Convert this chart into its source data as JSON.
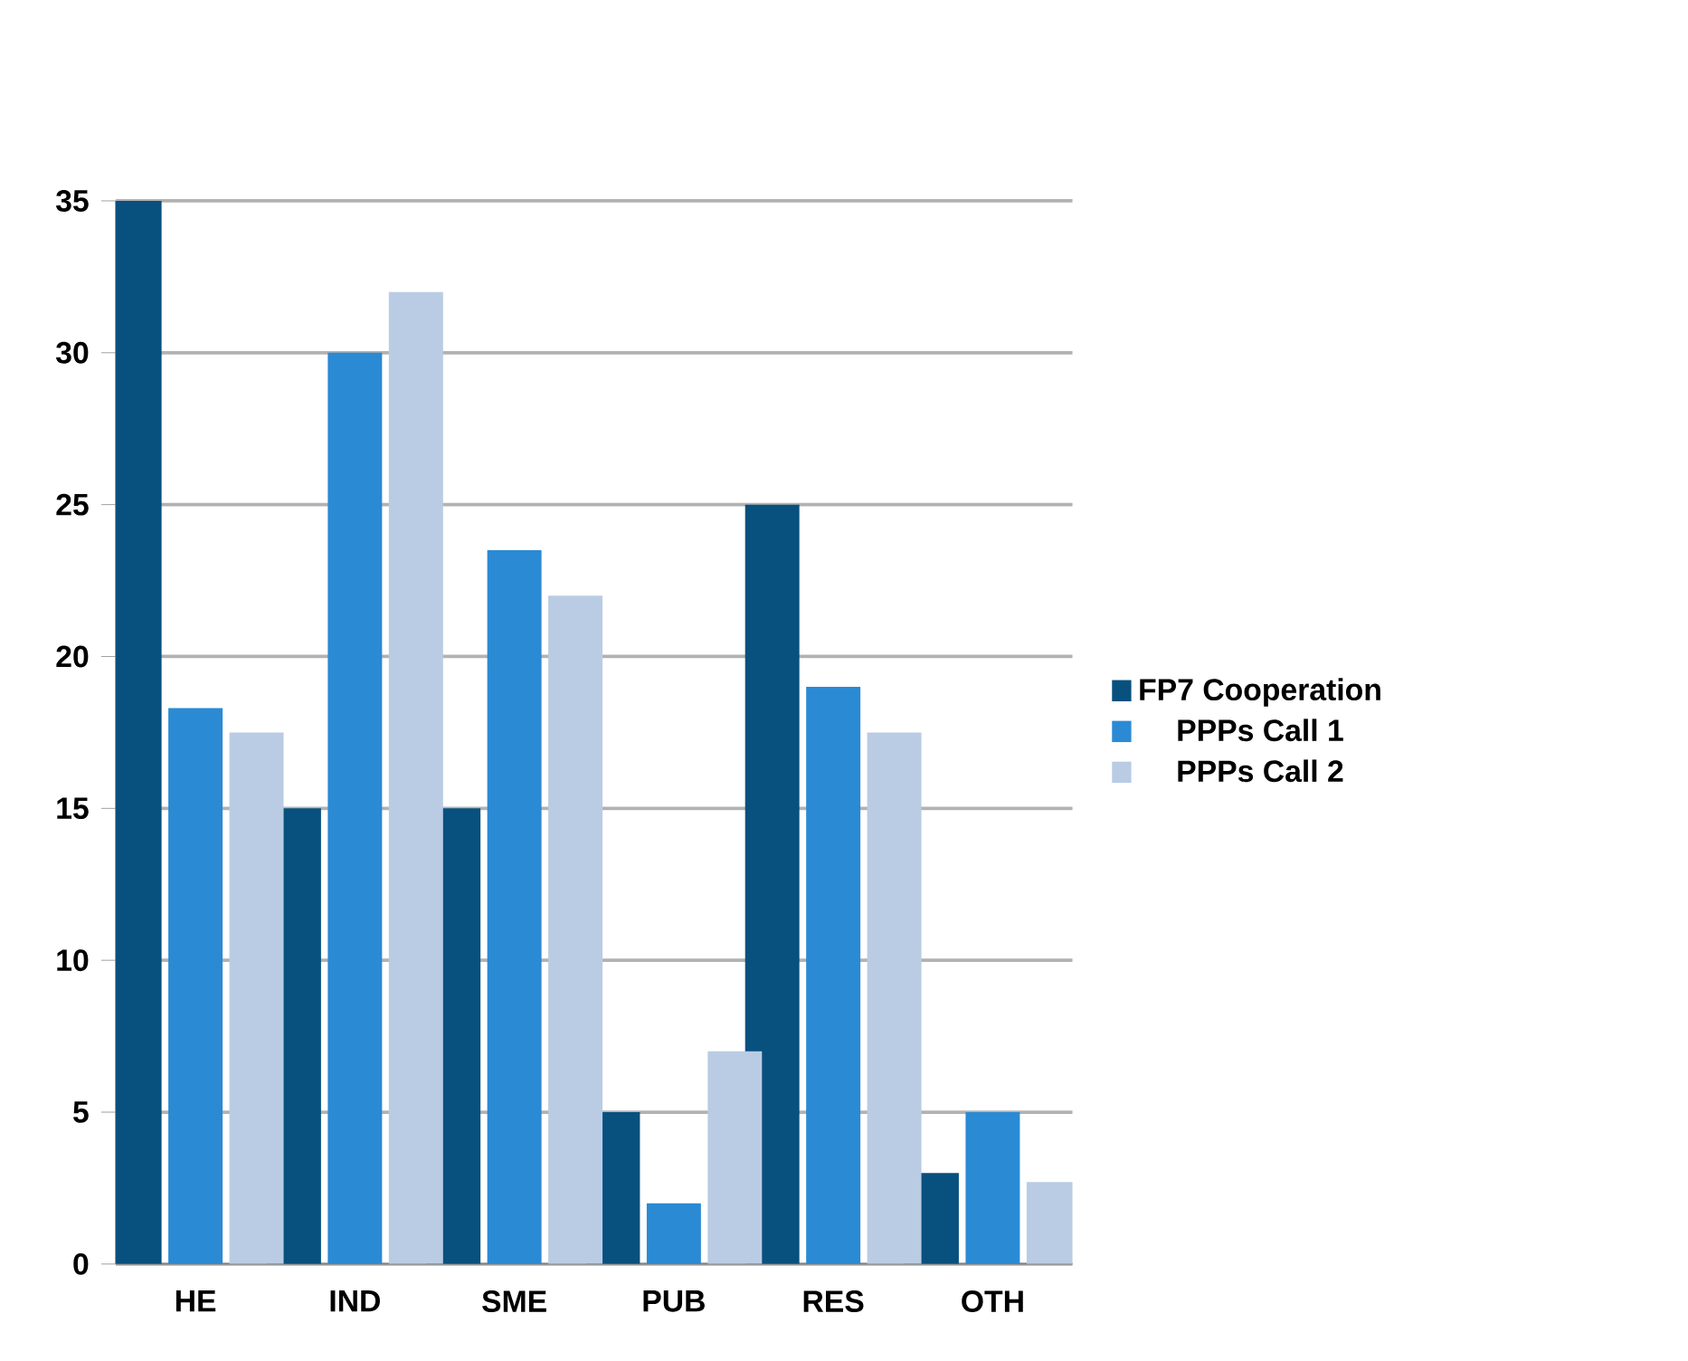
{
  "chart_data": {
    "type": "bar",
    "categories": [
      "HE",
      "IND",
      "SME",
      "PUB",
      "RES",
      "OTH"
    ],
    "series": [
      {
        "name": "FP7 Cooperation",
        "color": "#08507e",
        "values": [
          35,
          15,
          15,
          5,
          25,
          3
        ]
      },
      {
        "name": "PPPs Call 1",
        "color": "#2a8ad4",
        "values": [
          18.3,
          30,
          23.5,
          2,
          19,
          5
        ]
      },
      {
        "name": "PPPs Call 2",
        "color": "#b9cce4",
        "values": [
          17.5,
          32,
          22,
          7,
          17.5,
          2.7
        ]
      }
    ],
    "ylim": [
      0,
      35
    ],
    "yticks": [
      0,
      5,
      10,
      15,
      20,
      25,
      30,
      35
    ],
    "grid": "y",
    "legend": "right"
  }
}
